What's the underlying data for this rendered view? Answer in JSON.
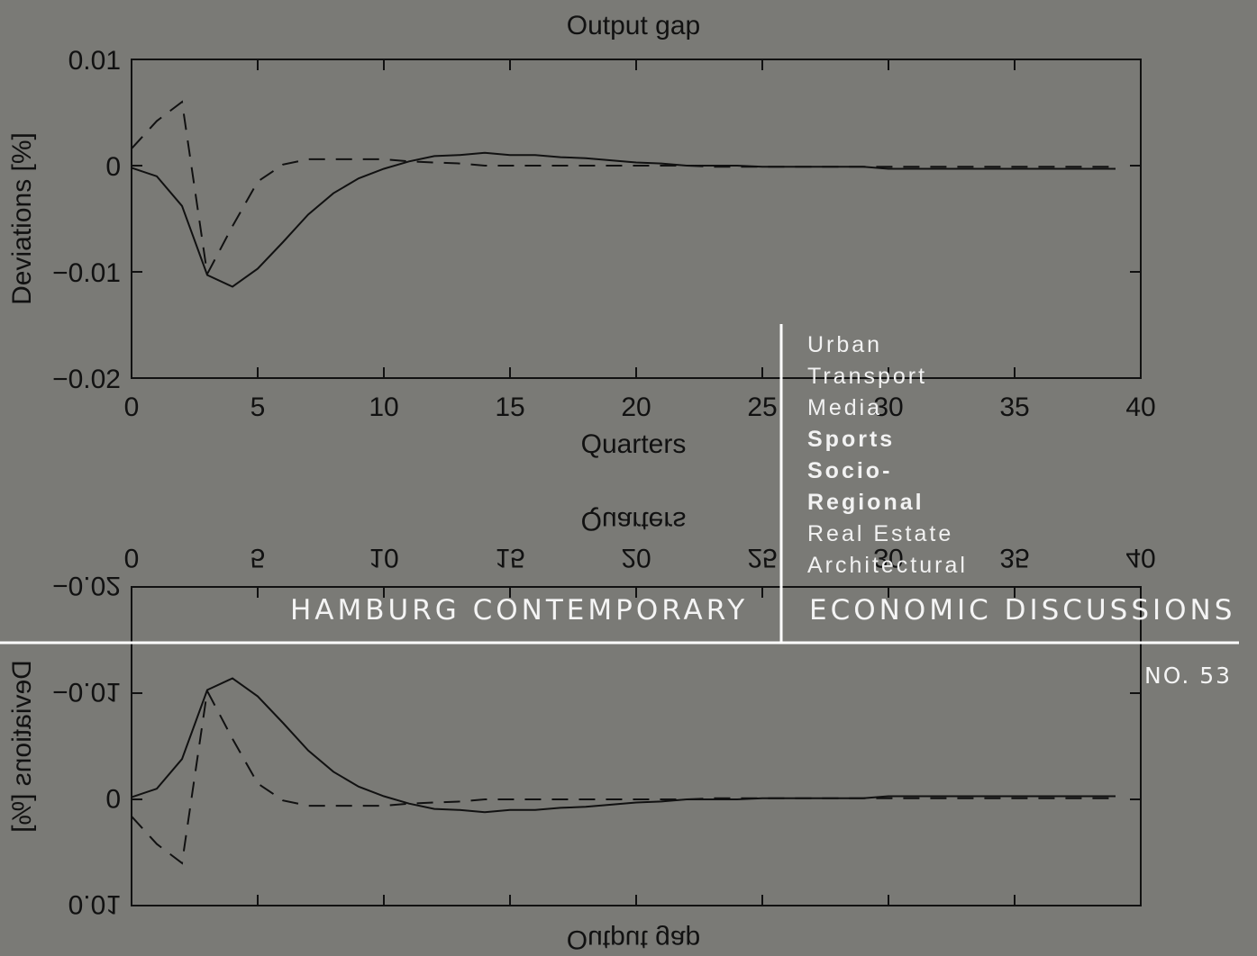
{
  "chart_data": {
    "type": "line",
    "title": "Output gap",
    "xlabel": "Quarters",
    "ylabel": "Deviations [%]",
    "xlim": [
      0,
      40
    ],
    "ylim": [
      -0.02,
      0.01
    ],
    "xticks": [
      "0",
      "5",
      "10",
      "15",
      "20",
      "25",
      "30",
      "35",
      "40"
    ],
    "yticks": [
      "0.01",
      "0",
      "−0.01",
      "−0.02"
    ],
    "grid": false,
    "series": [
      {
        "style": "solid",
        "x": [
          0,
          1,
          2,
          3,
          4,
          5,
          6,
          7,
          8,
          9,
          10,
          11,
          12,
          13,
          14,
          15,
          16,
          17,
          18,
          19,
          20,
          21,
          22,
          23,
          24,
          25,
          26,
          27,
          28,
          29,
          30,
          31,
          32,
          33,
          34,
          35,
          36,
          37,
          38,
          39
        ],
        "values": [
          -0.0002,
          -0.001,
          -0.0038,
          -0.0103,
          -0.0114,
          -0.0097,
          -0.0072,
          -0.0046,
          -0.0026,
          -0.0012,
          -0.0003,
          0.0004,
          0.0009,
          0.001,
          0.0012,
          0.001,
          0.001,
          0.0008,
          0.0007,
          0.0005,
          0.0003,
          0.0002,
          0.0,
          0.0,
          0.0,
          -0.0001,
          -0.0001,
          -0.0001,
          -0.0001,
          -0.0001,
          -0.0003,
          -0.0003,
          -0.0003,
          -0.0003,
          -0.0003,
          -0.0003,
          -0.0003,
          -0.0003,
          -0.0003,
          -0.0003
        ]
      },
      {
        "style": "dashed",
        "x": [
          0,
          1,
          2,
          3,
          4,
          5,
          6,
          7,
          8,
          9,
          10,
          11,
          12,
          13,
          14,
          15,
          16,
          17,
          18,
          19,
          20,
          21,
          22,
          23,
          24,
          25,
          26,
          27,
          28,
          29,
          30,
          31,
          32,
          33,
          34,
          35,
          36,
          37,
          38,
          39
        ],
        "values": [
          0.0016,
          0.0042,
          0.006,
          -0.0102,
          -0.0057,
          -0.0015,
          0.0001,
          0.0006,
          0.0006,
          0.0006,
          0.0006,
          0.0004,
          0.0003,
          0.0002,
          0.0,
          0.0,
          0.0,
          0.0,
          0.0,
          0.0,
          0.0,
          0.0,
          0.0,
          -0.0001,
          -0.0001,
          -0.0001,
          -0.0001,
          -0.0001,
          -0.0001,
          -0.0001,
          -0.0001,
          -0.0001,
          -0.0001,
          -0.0001,
          -0.0001,
          -0.0001,
          -0.0001,
          -0.0001,
          -0.0001,
          -0.0001
        ]
      }
    ]
  },
  "series_list": [
    {
      "label": "Urban",
      "bold": false
    },
    {
      "label": "Transport",
      "bold": false
    },
    {
      "label": "Media",
      "bold": false
    },
    {
      "label": "Sports",
      "bold": true
    },
    {
      "label": "Socio-",
      "bold": true
    },
    {
      "label": "Regional",
      "bold": true
    },
    {
      "label": "Real Estate",
      "bold": false
    },
    {
      "label": "Architectural",
      "bold": false
    }
  ],
  "banner": {
    "left": "HAMBURG CONTEMPORARY",
    "right": "ECONOMIC DISCUSSIONS",
    "issue": "NO. 53"
  },
  "colors": {
    "background": "#7a7a76",
    "ink": "#111111",
    "overlay": "#ffffff"
  }
}
